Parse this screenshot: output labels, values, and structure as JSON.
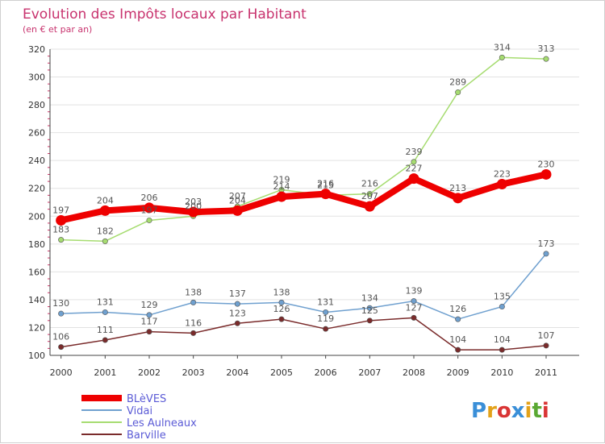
{
  "chart_data": {
    "type": "line",
    "title": "Evolution des Impôts locaux par Habitant",
    "subtitle": "(en € et par an)",
    "xlabel": "",
    "ylabel": "",
    "x": [
      "2000",
      "2001",
      "2002",
      "2003",
      "2004",
      "2005",
      "2006",
      "2007",
      "2008",
      "2009",
      "2010",
      "2011"
    ],
    "ylim": [
      100,
      320
    ],
    "yticks": [
      100,
      120,
      140,
      160,
      180,
      200,
      220,
      240,
      260,
      280,
      300,
      320
    ],
    "grid": "horizontal",
    "legend_position": "bottom-left",
    "series": [
      {
        "name": "BLèVES",
        "color": "#ee0000",
        "emphasis": "thick",
        "values": [
          197,
          204,
          206,
          203,
          204,
          214,
          216,
          207,
          227,
          213,
          223,
          230
        ]
      },
      {
        "name": "Vidai",
        "color": "#6fa0cf",
        "emphasis": "thin",
        "values": [
          130,
          131,
          129,
          138,
          137,
          138,
          131,
          134,
          139,
          126,
          135,
          173
        ]
      },
      {
        "name": "Les Aulneaux",
        "color": "#a6dc70",
        "emphasis": "thin",
        "values": [
          183,
          182,
          197,
          200,
          207,
          219,
          215,
          216,
          239,
          289,
          314,
          313
        ]
      },
      {
        "name": "Barville",
        "color": "#7a2b2b",
        "emphasis": "thin",
        "values": [
          106,
          111,
          117,
          116,
          123,
          126,
          119,
          125,
          127,
          104,
          104,
          107
        ]
      }
    ],
    "data_labels": {
      "BLèVES": [
        "197",
        "204",
        "206",
        "203",
        "204",
        "214",
        "216",
        "207",
        "227",
        "213",
        "223",
        "230"
      ],
      "Vidai": [
        "130",
        "131",
        "129",
        "138",
        "137",
        "138",
        "131",
        "134",
        "139",
        "126",
        "135",
        "173"
      ],
      "Les Aulneaux": [
        "183",
        "182",
        "197",
        "200",
        "207",
        "219",
        "215",
        "216",
        "239",
        "289",
        "314",
        "313"
      ],
      "Barville": [
        "106",
        "111",
        "117",
        "116",
        "123",
        "126",
        "119",
        "125",
        "127",
        "104",
        "104",
        "107"
      ]
    }
  },
  "brand": {
    "logo_text": "Proxiti",
    "logo_colors": [
      "#3a8fd8",
      "#e3a21a",
      "#d93535",
      "#3a8fd8",
      "#e3a21a",
      "#5aa832",
      "#d93535"
    ]
  }
}
